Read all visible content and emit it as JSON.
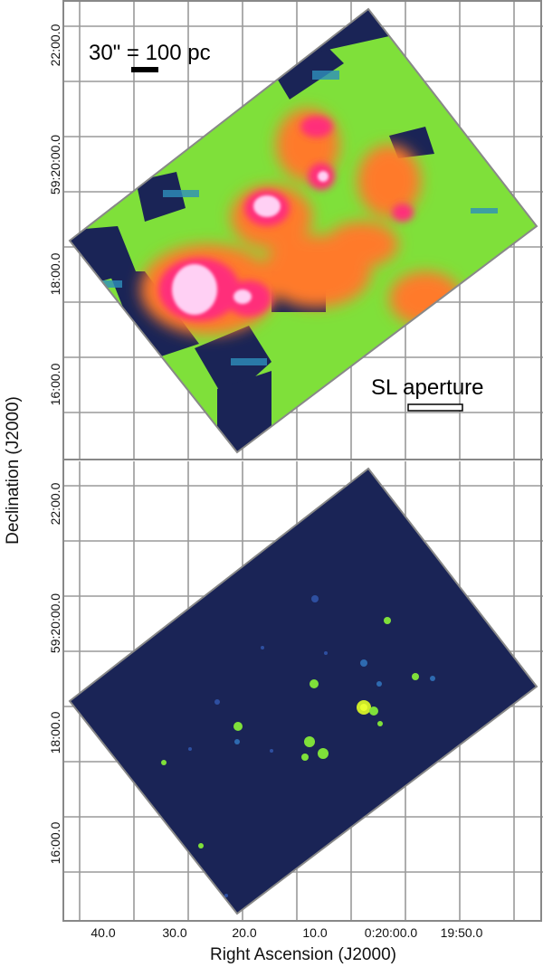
{
  "figure": {
    "xlabel": "Right Ascension (J2000)",
    "ylabel": "Declination (J2000)",
    "x_ticks": [
      "40.0",
      "30.0",
      "20.0",
      "10.0",
      "0:20:00.0",
      "19:50.0"
    ],
    "y_ticks": [
      "22:00.0",
      "59:20:00.0",
      "18:00.0",
      "16:00.0"
    ],
    "scale_bar_label": "30\" = 100 pc",
    "aperture_label": "SL aperture"
  },
  "colors": {
    "background_map": "#1a2456",
    "low_emission": "#7fe03a",
    "mid_emission": "#ff7a2a",
    "peak_emission": "#ffd0f4",
    "grid": "#9a9a9a"
  }
}
